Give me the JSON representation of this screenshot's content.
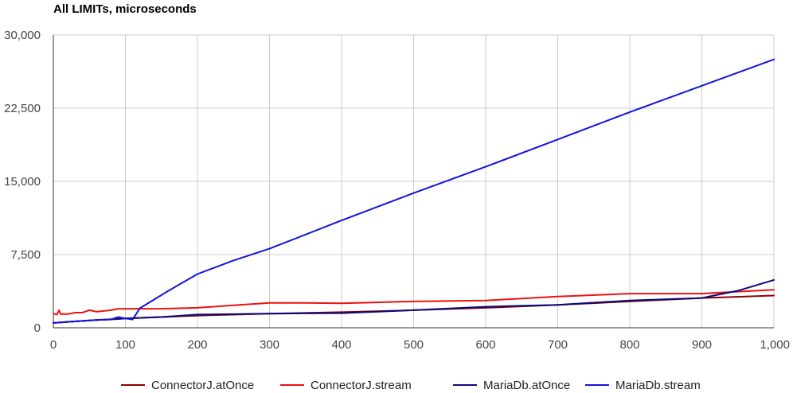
{
  "chart_data": {
    "type": "line",
    "title": "All LIMITs, microseconds",
    "xlabel": "",
    "ylabel": "",
    "xlim": [
      0,
      1000
    ],
    "ylim": [
      0,
      30000
    ],
    "x_ticks": [
      0,
      100,
      200,
      300,
      400,
      500,
      600,
      700,
      800,
      900,
      1000
    ],
    "x_tick_labels": [
      "0",
      "100",
      "200",
      "300",
      "400",
      "500",
      "600",
      "700",
      "800",
      "900",
      "1,000"
    ],
    "y_ticks": [
      0,
      7500,
      15000,
      22500,
      30000
    ],
    "y_tick_labels": [
      "0",
      "7,500",
      "15,000",
      "22,500",
      "30,000"
    ],
    "grid": true,
    "legend_position": "bottom",
    "series": [
      {
        "name": "ConnectorJ.atOnce",
        "color": "#8b0000",
        "points": [
          [
            0,
            500
          ],
          [
            50,
            750
          ],
          [
            100,
            950
          ],
          [
            150,
            1100
          ],
          [
            200,
            1250
          ],
          [
            300,
            1450
          ],
          [
            400,
            1600
          ],
          [
            500,
            1800
          ],
          [
            600,
            2050
          ],
          [
            700,
            2350
          ],
          [
            800,
            2700
          ],
          [
            900,
            3050
          ],
          [
            1000,
            3300
          ]
        ]
      },
      {
        "name": "ConnectorJ.stream",
        "color": "#ee1111",
        "points": [
          [
            0,
            1450
          ],
          [
            5,
            1350
          ],
          [
            8,
            1800
          ],
          [
            10,
            1400
          ],
          [
            20,
            1400
          ],
          [
            30,
            1550
          ],
          [
            40,
            1550
          ],
          [
            50,
            1800
          ],
          [
            60,
            1650
          ],
          [
            80,
            1800
          ],
          [
            90,
            1950
          ],
          [
            100,
            1950
          ],
          [
            150,
            1950
          ],
          [
            200,
            2050
          ],
          [
            250,
            2300
          ],
          [
            300,
            2550
          ],
          [
            350,
            2550
          ],
          [
            400,
            2500
          ],
          [
            500,
            2700
          ],
          [
            600,
            2800
          ],
          [
            700,
            3200
          ],
          [
            800,
            3500
          ],
          [
            900,
            3500
          ],
          [
            950,
            3700
          ],
          [
            1000,
            3900
          ]
        ]
      },
      {
        "name": "MariaDb.atOnce",
        "color": "#0a0a7a",
        "points": [
          [
            0,
            500
          ],
          [
            30,
            650
          ],
          [
            60,
            800
          ],
          [
            90,
            900
          ],
          [
            100,
            950
          ],
          [
            150,
            1100
          ],
          [
            200,
            1350
          ],
          [
            300,
            1450
          ],
          [
            400,
            1500
          ],
          [
            500,
            1800
          ],
          [
            600,
            2150
          ],
          [
            700,
            2350
          ],
          [
            800,
            2800
          ],
          [
            900,
            3050
          ],
          [
            950,
            3800
          ],
          [
            1000,
            4900
          ]
        ]
      },
      {
        "name": "MariaDb.stream",
        "color": "#1414dd",
        "points": [
          [
            0,
            500
          ],
          [
            30,
            650
          ],
          [
            60,
            800
          ],
          [
            80,
            850
          ],
          [
            90,
            1100
          ],
          [
            100,
            950
          ],
          [
            110,
            850
          ],
          [
            120,
            2000
          ],
          [
            160,
            3800
          ],
          [
            200,
            5500
          ],
          [
            250,
            6900
          ],
          [
            300,
            8100
          ],
          [
            400,
            11000
          ],
          [
            500,
            13800
          ],
          [
            600,
            16500
          ],
          [
            700,
            19300
          ],
          [
            800,
            22100
          ],
          [
            900,
            24800
          ],
          [
            1000,
            27500
          ]
        ]
      }
    ]
  }
}
